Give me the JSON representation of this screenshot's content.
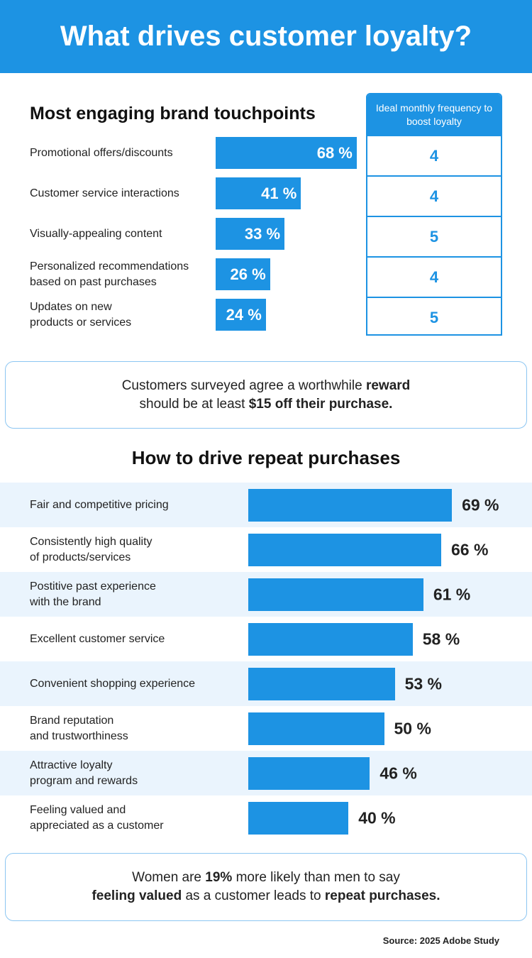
{
  "title": "What drives customer loyalty?",
  "section1": {
    "heading": "Most engaging brand touchpoints",
    "table_header": "Ideal monthly frequency to boost loyalty"
  },
  "callout1": {
    "pre": "Customers surveyed agree a worthwhile ",
    "b1": "reward",
    "mid": "should be at least ",
    "b2": "$15 off their purchase."
  },
  "section2": {
    "heading": "How to drive repeat purchases"
  },
  "callout2": {
    "pre": "Women are ",
    "b1": "19%",
    "mid": " more likely than men to say",
    "b2": "feeling valued",
    "mid2": " as a customer leads to ",
    "b3": "repeat purchases."
  },
  "source": "Source: 2025 Adobe Study",
  "colors": {
    "accent": "#1d93e3",
    "row_alt": "#eaf4fd",
    "callout_border": "#8cc6f2"
  },
  "chart_data": [
    {
      "type": "bar",
      "orientation": "horizontal",
      "title": "Most engaging brand touchpoints",
      "categories": [
        "Promotional offers/discounts",
        "Customer service interactions",
        "Visually-appealing content",
        "Personalized recommendations\nbased on past purchases",
        "Updates on new\nproducts or services"
      ],
      "values": [
        68,
        41,
        33,
        26,
        24
      ],
      "labels": [
        "68 %",
        "41 %",
        "33 %",
        "26 %",
        "24 %"
      ],
      "frequency": [
        "4",
        "4",
        "5",
        "4",
        "5"
      ],
      "unit": "%",
      "grid": false
    },
    {
      "type": "bar",
      "orientation": "horizontal",
      "title": "How to drive repeat purchases",
      "categories": [
        "Fair and competitive pricing",
        "Consistently high quality\nof products/services",
        "Postitive past experience\nwith the brand",
        "Excellent customer service",
        "Convenient shopping experience",
        "Brand reputation\nand trustworthiness",
        "Attractive loyalty\nprogram and rewards",
        "Feeling valued and\nappreciated as a customer"
      ],
      "values": [
        69,
        66,
        61,
        58,
        53,
        50,
        46,
        40
      ],
      "labels": [
        "69 %",
        "66 %",
        "61 %",
        "58 %",
        "53 %",
        "50 %",
        "46 %",
        "40 %"
      ],
      "unit": "%",
      "grid": false
    }
  ]
}
